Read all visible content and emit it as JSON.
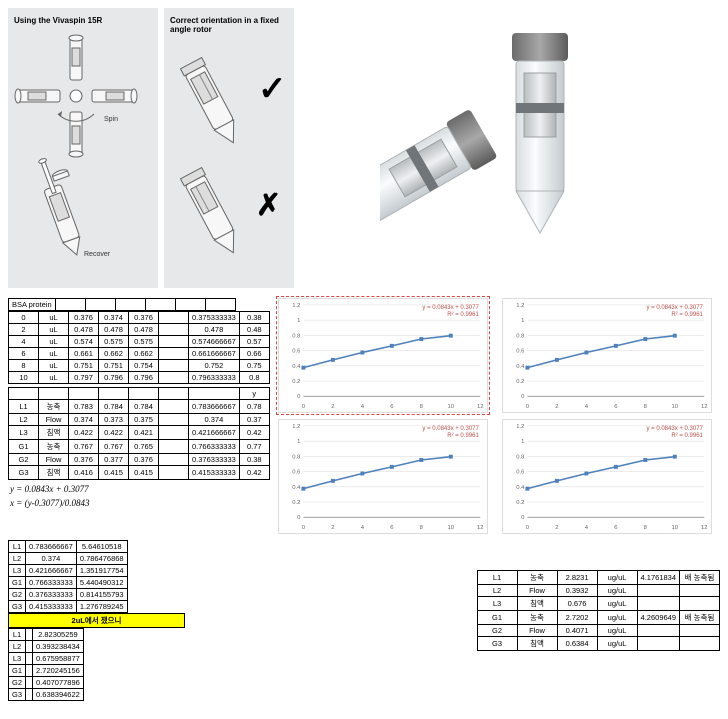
{
  "panel1": {
    "title": "Using the Vivaspin 15R",
    "spin": "Spin",
    "recover": "Recover"
  },
  "panel2": {
    "title": "Correct orientation in a fixed angle rotor",
    "check": "✓",
    "cross": "✗"
  },
  "formula1": "y = 0.0843x + 0.3077",
  "formula2": "x = (y-0.3077)/0.0843",
  "bsa": {
    "label": "BSA protein",
    "rows1": [
      [
        "0",
        "uL",
        "0.376",
        "0.374",
        "0.376",
        "",
        "0.375333333",
        "0.38"
      ],
      [
        "2",
        "uL",
        "0.478",
        "0.478",
        "0.478",
        "",
        "0.478",
        "0.48"
      ],
      [
        "4",
        "uL",
        "0.574",
        "0.575",
        "0.575",
        "",
        "0.574666667",
        "0.57"
      ],
      [
        "6",
        "uL",
        "0.661",
        "0.662",
        "0.662",
        "",
        "0.661666667",
        "0.66"
      ],
      [
        "8",
        "uL",
        "0.751",
        "0.751",
        "0.754",
        "",
        "0.752",
        "0.75"
      ],
      [
        "10",
        "uL",
        "0.797",
        "0.796",
        "0.796",
        "",
        "0.796333333",
        "0.8"
      ]
    ],
    "rows2": [
      [
        "",
        "",
        "",
        "",
        "",
        "",
        "",
        "y"
      ],
      [
        "L1",
        "농축",
        "0.783",
        "0.784",
        "0.784",
        "",
        "0.783666667",
        "0.78"
      ],
      [
        "L2",
        "Flow",
        "0.374",
        "0.373",
        "0.375",
        "",
        "0.374",
        "0.37"
      ],
      [
        "L3",
        "침액",
        "0.422",
        "0.422",
        "0.421",
        "",
        "0.421666667",
        "0.42"
      ],
      [
        "G1",
        "농축",
        "0.767",
        "0.767",
        "0.765",
        "",
        "0.766333333",
        "0.77"
      ],
      [
        "G2",
        "Flow",
        "0.376",
        "0.377",
        "0.376",
        "",
        "0.376333333",
        "0.38"
      ],
      [
        "G3",
        "침액",
        "0.416",
        "0.415",
        "0.415",
        "",
        "0.415333333",
        "0.42"
      ]
    ]
  },
  "charts": {
    "xticks": [
      0,
      2,
      4,
      6,
      8,
      10,
      12
    ],
    "yticks": [
      "0",
      "0.2",
      "0.4",
      "0.6",
      "0.8",
      "1",
      "1.2"
    ],
    "eq_line": "y = 0.0843x + 0.3077",
    "r2_line": "R² = 0.9961",
    "points": [
      {
        "x": 0,
        "y": 0.376
      },
      {
        "x": 2,
        "y": 0.478
      },
      {
        "x": 4,
        "y": 0.575
      },
      {
        "x": 6,
        "y": 0.662
      },
      {
        "x": 8,
        "y": 0.752
      },
      {
        "x": 10,
        "y": 0.796
      }
    ],
    "line_color": "#4f81bd",
    "marker_color": "#4f81bd",
    "grid_color": "#d9d9d9",
    "axis_color": "#808080",
    "xlim": [
      0,
      12
    ],
    "ylim": [
      0,
      1.2
    ]
  },
  "table2": {
    "rows": [
      [
        "L1",
        "0.783666667",
        "5.64610518"
      ],
      [
        "L2",
        "0.374",
        "0.786476868"
      ],
      [
        "L3",
        "0.421666667",
        "1.351917754"
      ],
      [
        "G1",
        "0.766333333",
        "5.440490312"
      ],
      [
        "G2",
        "0.376333333",
        "0.814155793"
      ],
      [
        "G3",
        "0.415333333",
        "1.276789245"
      ]
    ],
    "highlight": "2uL에서 쟀으니",
    "rows2": [
      [
        "L1",
        "",
        "2.82305259"
      ],
      [
        "L2",
        "",
        "0.393238434"
      ],
      [
        "L3",
        "",
        "0.675958877"
      ],
      [
        "G1",
        "",
        "2.720245156"
      ],
      [
        "G2",
        "",
        "0.407077896"
      ],
      [
        "G3",
        "",
        "0.638394622"
      ]
    ]
  },
  "table3": {
    "rows": [
      [
        "L1",
        "농축",
        "2.8231",
        "ug/uL",
        "4.1761834",
        "배 농축됨"
      ],
      [
        "L2",
        "Flow",
        "0.3932",
        "ug/uL",
        "",
        ""
      ],
      [
        "L3",
        "침액",
        "0.676",
        "ug/uL",
        "",
        ""
      ],
      [
        "G1",
        "농축",
        "2.7202",
        "ug/uL",
        "4.2609649",
        "배 농축됨"
      ],
      [
        "G2",
        "Flow",
        "0.4071",
        "ug/uL",
        "",
        ""
      ],
      [
        "G3",
        "침액",
        "0.6384",
        "ug/uL",
        "",
        ""
      ]
    ]
  }
}
